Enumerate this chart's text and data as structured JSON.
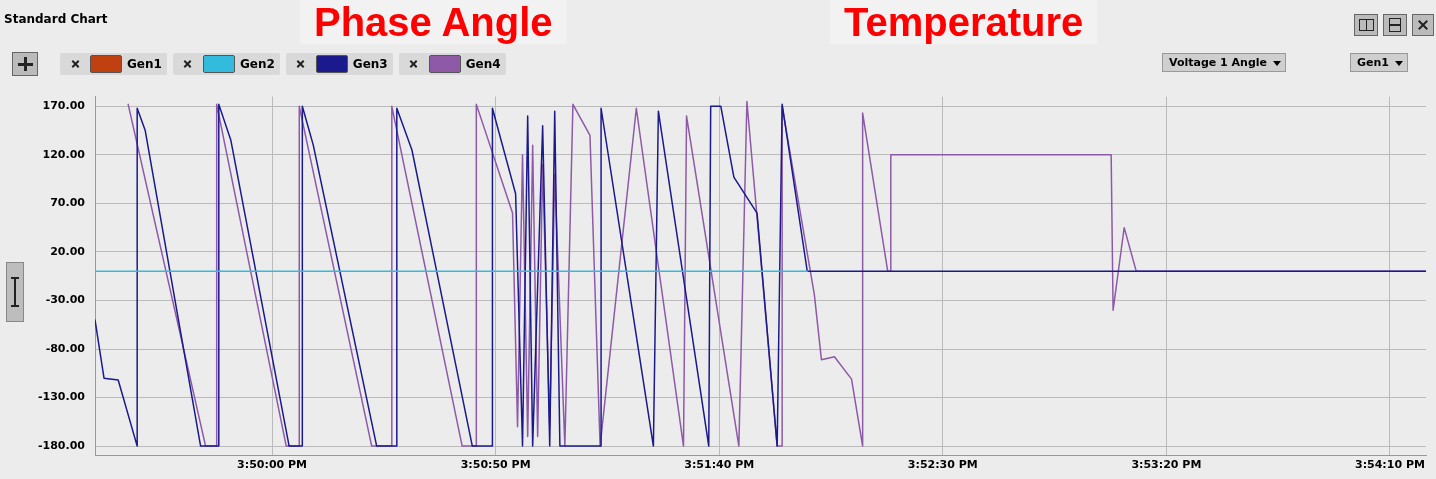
{
  "chart_data": {
    "type": "line",
    "title": "Standard Chart",
    "annotations": [
      "Temperature",
      "Phase Angle",
      "Voltage 1 Angle",
      "Gen1"
    ],
    "xlim": [
      15.82233,
      15.90502
    ],
    "xticks": [
      {
        "value": 15.83333,
        "label": "3:50:00 PM"
      },
      {
        "value": 15.84722,
        "label": "3:50:50 PM"
      },
      {
        "value": 15.86111,
        "label": "3:51:40 PM"
      },
      {
        "value": 15.875,
        "label": "3:52:30 PM"
      },
      {
        "value": 15.88889,
        "label": "3:53:20 PM"
      },
      {
        "value": 15.90278,
        "label": "3:54:10 PM"
      }
    ],
    "ylim": [
      -190,
      180
    ],
    "yticks": [
      {
        "value": 170,
        "label": "170.00"
      },
      {
        "value": 120,
        "label": "120.00"
      },
      {
        "value": 70,
        "label": "70.00"
      },
      {
        "value": 20,
        "label": "20.00"
      },
      {
        "value": -30,
        "label": "-30.00"
      },
      {
        "value": -80,
        "label": "-80.00"
      },
      {
        "value": -130,
        "label": "-130.00"
      },
      {
        "value": -180,
        "label": "-180.00"
      }
    ],
    "grid": true,
    "legend": "top left",
    "marker": "none",
    "line_style": "solid",
    "series": [
      {
        "name": "Gen1",
        "color": "#c0400f"
      },
      {
        "name": "Gen2",
        "color": "#33bbdd",
        "x": [
          15.82233,
          15.86658
        ],
        "values": [
          0,
          0
        ]
      },
      {
        "name": "Gen3",
        "color": "#1a1a8c",
        "x": [
          15.82233,
          15.82289,
          15.82377,
          15.82495,
          15.82495,
          15.82545,
          15.82889,
          15.83002,
          15.83002,
          15.83077,
          15.83439,
          15.83521,
          15.83521,
          15.83589,
          15.83983,
          15.84108,
          15.84108,
          15.84202,
          15.84577,
          15.84702,
          15.84702,
          15.84846,
          15.84889,
          15.84921,
          15.84952,
          15.85014,
          15.85058,
          15.85089,
          15.85121,
          15.85377,
          15.85377,
          15.85702,
          15.85733,
          15.86046,
          15.86058,
          15.86121,
          15.86202,
          15.86346,
          15.86471,
          15.86502,
          15.86658,
          15.90502
        ],
        "values": [
          -50,
          -110,
          -112,
          -180,
          168,
          145,
          -180,
          -180,
          172,
          135,
          -180,
          -180,
          170,
          130,
          -180,
          -180,
          168,
          125,
          -180,
          -180,
          168,
          80,
          -180,
          160,
          -180,
          150,
          -180,
          165,
          -180,
          -180,
          168,
          -180,
          165,
          -180,
          170,
          170,
          97,
          60,
          -180,
          172,
          0,
          0
        ]
      },
      {
        "name": "Gen4",
        "color": "#8e5aa8",
        "x": [
          15.82439,
          15.8292,
          15.82989,
          15.82989,
          15.83421,
          15.83502,
          15.83502,
          15.83952,
          15.84077,
          15.84077,
          15.84514,
          15.84602,
          15.84602,
          15.84827,
          15.84858,
          15.84889,
          15.84921,
          15.84952,
          15.84983,
          15.85014,
          15.85058,
          15.85089,
          15.85152,
          15.85202,
          15.85308,
          15.85371,
          15.85596,
          15.85889,
          15.85908,
          15.86233,
          15.86283,
          15.86471,
          15.86502,
          15.86502,
          15.86702,
          15.86746,
          15.86827,
          15.86933,
          15.87002,
          15.87002,
          15.87158,
          15.87177,
          15.87177,
          15.88546,
          15.88558,
          15.88627,
          15.88702,
          15.90502
        ],
        "values": [
          172,
          -180,
          -180,
          172,
          -180,
          -180,
          170,
          -180,
          -180,
          170,
          -180,
          -180,
          172,
          60,
          -160,
          120,
          -170,
          130,
          -170,
          110,
          -160,
          100,
          -180,
          172,
          140,
          -180,
          168,
          -180,
          160,
          -180,
          175,
          -180,
          -180,
          170,
          -24,
          -91,
          -88,
          -111,
          -180,
          163,
          0,
          0,
          120,
          120,
          -40,
          45,
          0,
          0
        ]
      }
    ]
  }
}
